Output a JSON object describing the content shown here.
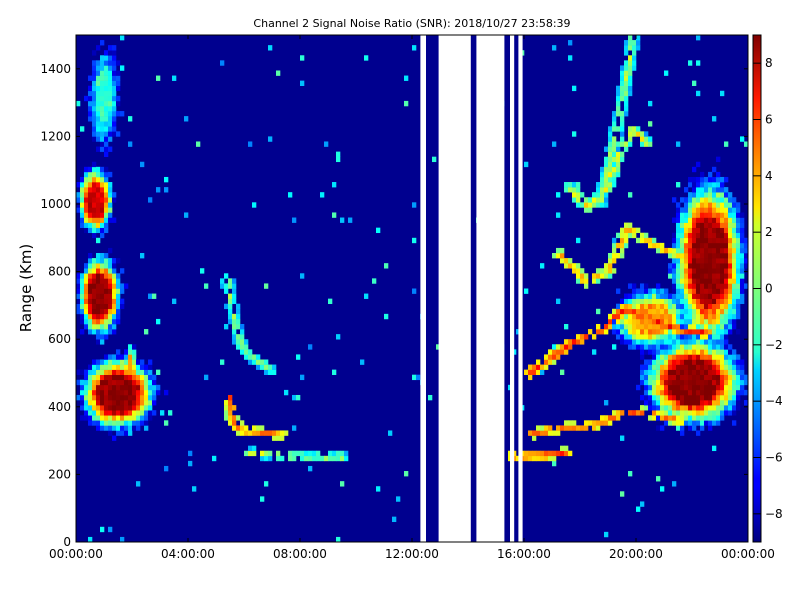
{
  "chart_data": {
    "type": "heatmap",
    "title": "Channel 2 Signal Noise Ratio (SNR): 2018/10/27 23:58:39",
    "xlabel": "",
    "ylabel": "Range (Km)",
    "x_ticks": [
      "00:00:00",
      "04:00:00",
      "08:00:00",
      "12:00:00",
      "16:00:00",
      "20:00:00",
      "00:00:00"
    ],
    "y_ticks": [
      "0",
      "200",
      "400",
      "600",
      "800",
      "1000",
      "1200",
      "1400"
    ],
    "xlim_hours": [
      0,
      24
    ],
    "ylim": [
      0,
      1500
    ],
    "colorbar": {
      "min": -9,
      "max": 9,
      "ticks": [
        "8",
        "6",
        "4",
        "2",
        "0",
        "−2",
        "−4",
        "−6",
        "−8"
      ],
      "tick_values": [
        8,
        6,
        4,
        2,
        0,
        -2,
        -4,
        -6,
        -8
      ],
      "colormap": "jet"
    },
    "background_snr": -8.5,
    "data_gaps_hours": [
      [
        12.3,
        12.5
      ],
      [
        12.95,
        14.1
      ],
      [
        14.3,
        15.3
      ],
      [
        15.5,
        15.65
      ],
      [
        15.8,
        15.95
      ]
    ],
    "features": [
      {
        "name": "blob",
        "t": [
          0.0,
          1.7
        ],
        "r": [
          600,
          860
        ],
        "peak": 8.8
      },
      {
        "name": "blob",
        "t": [
          0.0,
          1.4
        ],
        "r": [
          900,
          1120
        ],
        "peak": 7.5
      },
      {
        "name": "blob",
        "t": [
          0.4,
          1.6
        ],
        "r": [
          1150,
          1480
        ],
        "peak": -1.5
      },
      {
        "name": "blob",
        "t": [
          0.0,
          3.0
        ],
        "r": [
          320,
          560
        ],
        "peak": 8.8
      },
      {
        "name": "blob",
        "t": [
          1.7,
          2.2
        ],
        "r": [
          420,
          600
        ],
        "peak": 4.0
      },
      {
        "name": "blob",
        "t": [
          21.2,
          24.0
        ],
        "r": [
          560,
          1100
        ],
        "peak": 8.8
      },
      {
        "name": "blob",
        "t": [
          20.1,
          24.0
        ],
        "r": [
          330,
          620
        ],
        "peak": 8.8
      },
      {
        "name": "blob",
        "t": [
          19.0,
          22.0
        ],
        "r": [
          560,
          760
        ],
        "peak": 4.0
      },
      {
        "name": "trace",
        "points": [
          [
            5.4,
            780
          ],
          [
            5.6,
            680
          ],
          [
            5.9,
            580
          ],
          [
            6.3,
            545
          ],
          [
            7.0,
            510
          ]
        ],
        "peak": 0.5
      },
      {
        "name": "trace",
        "points": [
          [
            5.5,
            430
          ],
          [
            5.6,
            360
          ],
          [
            5.9,
            330
          ],
          [
            6.6,
            325
          ],
          [
            7.3,
            318
          ]
        ],
        "peak": 5.0
      },
      {
        "name": "trace",
        "points": [
          [
            6.2,
            265
          ],
          [
            7.5,
            255
          ],
          [
            9.5,
            252
          ]
        ],
        "peak": 1.5
      },
      {
        "name": "trace",
        "points": [
          [
            15.6,
            255
          ],
          [
            16.5,
            255
          ],
          [
            17.5,
            265
          ]
        ],
        "peak": 6.0
      },
      {
        "name": "trace",
        "points": [
          [
            16.3,
            320
          ],
          [
            17.5,
            340
          ],
          [
            18.5,
            345
          ],
          [
            19.5,
            380
          ],
          [
            20.3,
            385
          ],
          [
            21.5,
            360
          ]
        ],
        "peak": 5.5
      },
      {
        "name": "trace",
        "points": [
          [
            16.2,
            500
          ],
          [
            17.2,
            560
          ],
          [
            18.0,
            600
          ],
          [
            18.8,
            630
          ],
          [
            19.6,
            690
          ],
          [
            20.5,
            660
          ],
          [
            21.5,
            630
          ],
          [
            22.5,
            620
          ]
        ],
        "peak": 6.5
      },
      {
        "name": "trace",
        "points": [
          [
            17.3,
            850
          ],
          [
            18.2,
            770
          ],
          [
            19.0,
            800
          ],
          [
            19.7,
            930
          ],
          [
            20.6,
            880
          ],
          [
            21.5,
            850
          ]
        ],
        "peak": 4.0
      },
      {
        "name": "trace",
        "points": [
          [
            17.6,
            1050
          ],
          [
            18.3,
            990
          ],
          [
            18.9,
            1040
          ],
          [
            19.4,
            1150
          ],
          [
            19.9,
            1220
          ],
          [
            20.4,
            1180
          ]
        ],
        "peak": 2.5
      },
      {
        "name": "trace",
        "points": [
          [
            18.7,
            1000
          ],
          [
            19.0,
            1100
          ],
          [
            19.5,
            1300
          ],
          [
            19.9,
            1490
          ]
        ],
        "peak": 1.0
      }
    ]
  }
}
